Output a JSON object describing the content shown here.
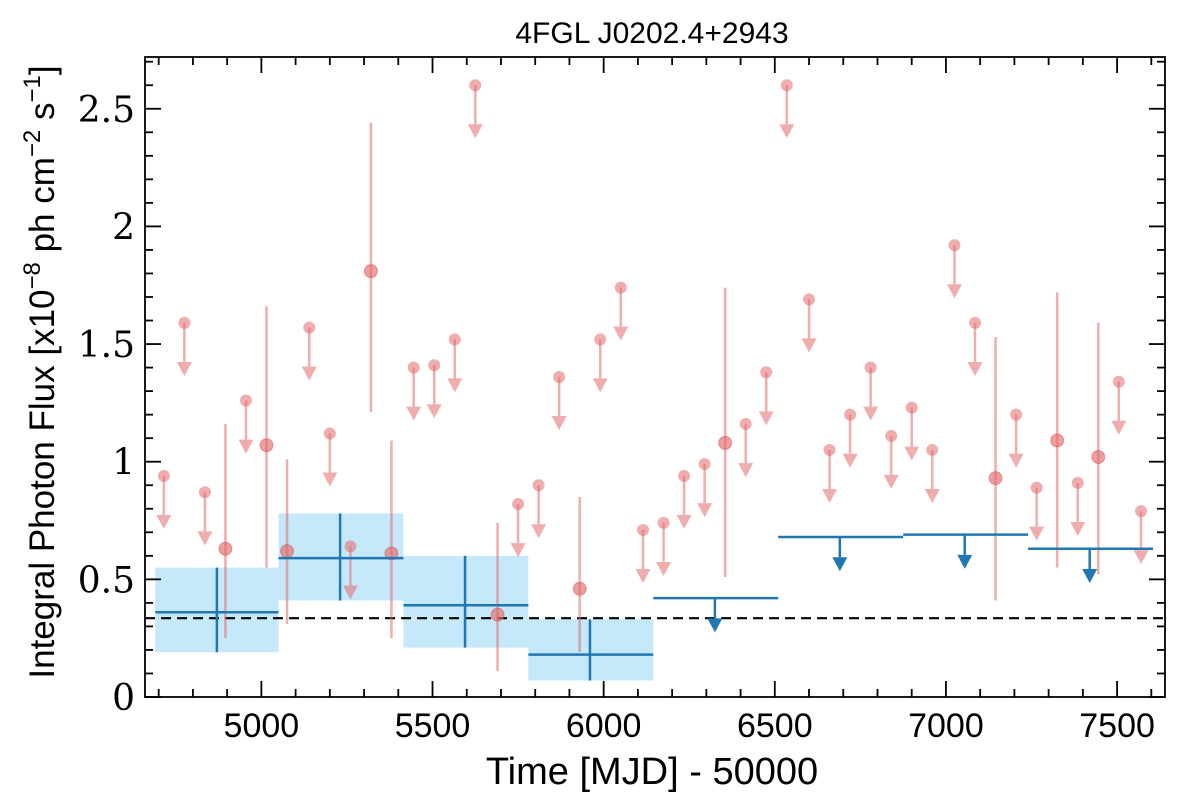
{
  "chart_data": {
    "type": "scatter",
    "title": "4FGL J0202.4+2943",
    "xlabel": "Time [MJD] - 50000",
    "ylabel": "Integral Photon Flux [x10",
    "ylabel_sup1": "−8",
    "ylabel_mid": " ph cm",
    "ylabel_sup2": "−2",
    "ylabel_s": " s",
    "ylabel_sup3": "−1",
    "ylabel_end": "]",
    "xlim": [
      4660,
      7640
    ],
    "ylim": [
      0,
      2.72
    ],
    "xticks": [
      5000,
      5500,
      6000,
      6500,
      7000,
      7500
    ],
    "xtick_labels": [
      "5000",
      "5500",
      "6000",
      "6500",
      "7000",
      "7500"
    ],
    "yticks": [
      0,
      0.5,
      1,
      1.5,
      2,
      2.5
    ],
    "ytick_labels": [
      "0",
      "0.5",
      "1",
      "1.5",
      "2",
      "2.5"
    ],
    "grid": false,
    "reference_line": {
      "y": 0.335,
      "style": "dashed",
      "color": "#000000"
    },
    "colors": {
      "fine": "#e46a6a",
      "coarse": "#1f77b4",
      "band": "#c5e9fb"
    },
    "series": [
      {
        "role": "fine-bin detections",
        "points": [
          {
            "x": 4895,
            "y": 0.63,
            "ylo": 0.25,
            "yhi": 1.16
          },
          {
            "x": 5015,
            "y": 1.07,
            "ylo": 0.55,
            "yhi": 1.66
          },
          {
            "x": 5075,
            "y": 0.62,
            "ylo": 0.31,
            "yhi": 1.01
          },
          {
            "x": 5320,
            "y": 1.81,
            "ylo": 1.21,
            "yhi": 2.44
          },
          {
            "x": 5380,
            "y": 0.61,
            "ylo": 0.25,
            "yhi": 1.09
          },
          {
            "x": 5690,
            "y": 0.35,
            "ylo": 0.11,
            "yhi": 0.74
          },
          {
            "x": 5930,
            "y": 0.46,
            "ylo": 0.19,
            "yhi": 0.85
          },
          {
            "x": 6355,
            "y": 1.08,
            "ylo": 0.51,
            "yhi": 1.74
          },
          {
            "x": 7145,
            "y": 0.93,
            "ylo": 0.41,
            "yhi": 1.53
          },
          {
            "x": 7325,
            "y": 1.09,
            "ylo": 0.55,
            "yhi": 1.72
          },
          {
            "x": 7445,
            "y": 1.02,
            "ylo": 0.52,
            "yhi": 1.59
          }
        ]
      },
      {
        "role": "fine-bin upper limits",
        "points": [
          {
            "x": 4715,
            "y": 0.94
          },
          {
            "x": 4775,
            "y": 1.59
          },
          {
            "x": 4835,
            "y": 0.87
          },
          {
            "x": 4955,
            "y": 1.26
          },
          {
            "x": 5140,
            "y": 1.57
          },
          {
            "x": 5200,
            "y": 1.12
          },
          {
            "x": 5260,
            "y": 0.64
          },
          {
            "x": 5445,
            "y": 1.4
          },
          {
            "x": 5505,
            "y": 1.41
          },
          {
            "x": 5565,
            "y": 1.52
          },
          {
            "x": 5625,
            "y": 2.6
          },
          {
            "x": 5750,
            "y": 0.82
          },
          {
            "x": 5810,
            "y": 0.9
          },
          {
            "x": 5870,
            "y": 1.36
          },
          {
            "x": 5990,
            "y": 1.52
          },
          {
            "x": 6050,
            "y": 1.74
          },
          {
            "x": 6115,
            "y": 0.71
          },
          {
            "x": 6175,
            "y": 0.74
          },
          {
            "x": 6235,
            "y": 0.94
          },
          {
            "x": 6295,
            "y": 0.99
          },
          {
            "x": 6415,
            "y": 1.16
          },
          {
            "x": 6475,
            "y": 1.38
          },
          {
            "x": 6535,
            "y": 2.6
          },
          {
            "x": 6600,
            "y": 1.69
          },
          {
            "x": 6660,
            "y": 1.05
          },
          {
            "x": 6720,
            "y": 1.2
          },
          {
            "x": 6780,
            "y": 1.4
          },
          {
            "x": 6840,
            "y": 1.11
          },
          {
            "x": 6900,
            "y": 1.23
          },
          {
            "x": 6960,
            "y": 1.05
          },
          {
            "x": 7025,
            "y": 1.92
          },
          {
            "x": 7085,
            "y": 1.59
          },
          {
            "x": 7205,
            "y": 1.2
          },
          {
            "x": 7265,
            "y": 0.89
          },
          {
            "x": 7385,
            "y": 0.91
          },
          {
            "x": 7505,
            "y": 1.34
          },
          {
            "x": 7570,
            "y": 0.79
          }
        ]
      },
      {
        "role": "coarse-bin detections",
        "points": [
          {
            "x": 4870,
            "x0": 4690,
            "x1": 5050,
            "y": 0.36,
            "ylo": 0.19,
            "yhi": 0.55
          },
          {
            "x": 5230,
            "x0": 5050,
            "x1": 5415,
            "y": 0.59,
            "ylo": 0.41,
            "yhi": 0.78
          },
          {
            "x": 5595,
            "x0": 5415,
            "x1": 5780,
            "y": 0.39,
            "ylo": 0.21,
            "yhi": 0.6
          },
          {
            "x": 5960,
            "x0": 5780,
            "x1": 6145,
            "y": 0.18,
            "ylo": 0.07,
            "yhi": 0.33
          }
        ]
      },
      {
        "role": "coarse-bin upper limits",
        "points": [
          {
            "x": 6325,
            "x0": 6145,
            "x1": 6510,
            "y": 0.42
          },
          {
            "x": 6690,
            "x0": 6510,
            "x1": 6875,
            "y": 0.68
          },
          {
            "x": 7055,
            "x0": 6875,
            "x1": 7240,
            "y": 0.69
          },
          {
            "x": 7420,
            "x0": 7240,
            "x1": 7605,
            "y": 0.63
          }
        ]
      }
    ]
  }
}
